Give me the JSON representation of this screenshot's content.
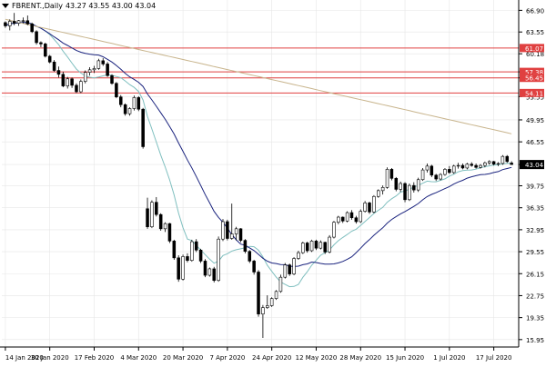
{
  "header": {
    "symbol": "FBRENT.,Daily",
    "ohlc": "43.27 43.55 43.00 43.04"
  },
  "chart_data": {
    "type": "candlestick",
    "symbol": "FBRENT.",
    "timeframe": "Daily",
    "last_price": "43.04",
    "y_ticks": [
      "66.90",
      "63.55",
      "60.18",
      "57.38",
      "56.45",
      "53.55",
      "49.95",
      "46.55",
      "43.04",
      "39.75",
      "36.35",
      "32.95",
      "29.55",
      "26.15",
      "22.75",
      "19.35",
      "15.95"
    ],
    "ylim": [
      14.8,
      68.5
    ],
    "x_ticks": [
      "14 Jan 2020",
      "30 Jan 2020",
      "17 Feb 2020",
      "4 Mar 2020",
      "20 Mar 2020",
      "7 Apr 2020",
      "24 Apr 2020",
      "12 May 2020",
      "28 May 2020",
      "15 Jun 2020",
      "1 Jul 2020",
      "17 Jul 2020"
    ],
    "levels": [
      {
        "value": 61.07,
        "label": "61.07"
      },
      {
        "value": 57.38,
        "label": "57.38"
      },
      {
        "value": 56.45,
        "label": "56.45"
      },
      {
        "value": 54.11,
        "label": "54.11"
      }
    ],
    "colors": {
      "level": "#e04040",
      "candle": "#000000",
      "ma_slow": "#c8b48c",
      "ma_mid": "#1a237e",
      "ma_fast": "#7fbfbf",
      "grid": "#e6e6e6"
    },
    "candles": [
      [
        65,
        65.2,
        64.2,
        64.5
      ],
      [
        64.5,
        65.5,
        63.8,
        65.2
      ],
      [
        65.2,
        66.5,
        64.6,
        64.9
      ],
      [
        64.9,
        65.4,
        64.5,
        65.3
      ],
      [
        65.3,
        65.8,
        64.9,
        65.3
      ],
      [
        65.3,
        66.1,
        64.6,
        64.8
      ],
      [
        64.8,
        65,
        63.4,
        63.6
      ],
      [
        63.6,
        63.8,
        61.6,
        61.9
      ],
      [
        61.9,
        62.1,
        61.2,
        61.7
      ],
      [
        61.7,
        61.9,
        59.6,
        59.8
      ],
      [
        59.8,
        60,
        58.7,
        58.9
      ],
      [
        58.9,
        59.2,
        57.4,
        57.6
      ],
      [
        57.6,
        58.2,
        56.5,
        57
      ],
      [
        57,
        57.4,
        55,
        55.2
      ],
      [
        55.2,
        56.6,
        54.8,
        56.3
      ],
      [
        56.3,
        56.5,
        54.9,
        55.3
      ],
      [
        55.3,
        55.6,
        54.1,
        54.3
      ],
      [
        54.3,
        56.2,
        54.1,
        55.9
      ],
      [
        55.9,
        57.6,
        55.6,
        57.3
      ],
      [
        57.3,
        58.1,
        56.8,
        57.7
      ],
      [
        57.7,
        58.3,
        57.2,
        57.9
      ],
      [
        57.9,
        59.4,
        57.7,
        59.1
      ],
      [
        59.1,
        59.5,
        58.3,
        58.6
      ],
      [
        58.6,
        58.9,
        56.6,
        56.8
      ],
      [
        56.8,
        57,
        55.4,
        55.6
      ],
      [
        55.6,
        55.8,
        53.3,
        53.5
      ],
      [
        53.5,
        53.8,
        51.9,
        52.3
      ],
      [
        52.3,
        52.5,
        50.6,
        50.9
      ],
      [
        50.9,
        51.9,
        50.6,
        51.7
      ],
      [
        51.7,
        53.7,
        51.4,
        53.4
      ],
      [
        53.4,
        53.6,
        51.3,
        51.6
      ],
      [
        51.6,
        51.8,
        45.5,
        45.8
      ],
      [
        36.2,
        37.9,
        33.1,
        33.4
      ],
      [
        33.4,
        37.5,
        33.2,
        37.2
      ],
      [
        37.2,
        38,
        35,
        35.3
      ],
      [
        35.3,
        35.5,
        32.8,
        33.1
      ],
      [
        33.1,
        34.1,
        32.6,
        33.9
      ],
      [
        33.9,
        34,
        30.9,
        31.2
      ],
      [
        31.2,
        31.4,
        28.3,
        28.6
      ],
      [
        28.6,
        29,
        24.9,
        25.3
      ],
      [
        25.3,
        29.1,
        25.1,
        28.8
      ],
      [
        28.8,
        29.3,
        27.9,
        28.2
      ],
      [
        28.2,
        31.4,
        28,
        31.1
      ],
      [
        31.1,
        31.5,
        29.5,
        29.8
      ],
      [
        29.8,
        30,
        27.8,
        28.1
      ],
      [
        28.1,
        28.4,
        25.6,
        25.9
      ],
      [
        25.9,
        27.1,
        25.7,
        26.9
      ],
      [
        26.9,
        27.2,
        24.8,
        25.1
      ],
      [
        25.1,
        31.9,
        24.9,
        31.5
      ],
      [
        31.5,
        34.6,
        31.2,
        34.2
      ],
      [
        34.2,
        34.5,
        31.3,
        31.6
      ],
      [
        31.6,
        37,
        31.4,
        32.3
      ],
      [
        32.3,
        33.4,
        31.3,
        33.1
      ],
      [
        33.1,
        33.2,
        31,
        31.3
      ],
      [
        31.3,
        31.5,
        29.3,
        29.6
      ],
      [
        29.6,
        29.8,
        27.8,
        28.1
      ],
      [
        28.1,
        28.3,
        26,
        26.4
      ],
      [
        26.4,
        26.7,
        19.5,
        19.9
      ],
      [
        19.9,
        21.3,
        16.2,
        20.9
      ],
      [
        20.9,
        22.8,
        20.7,
        21.2
      ],
      [
        21.2,
        22.5,
        21,
        22.3
      ],
      [
        22.3,
        23.6,
        22.1,
        23.4
      ],
      [
        23.4,
        26,
        23.2,
        25.6
      ],
      [
        25.6,
        27.8,
        25.4,
        27.5
      ],
      [
        27.5,
        27.7,
        25.8,
        26.1
      ],
      [
        26.1,
        28.7,
        25.9,
        28.5
      ],
      [
        28.5,
        29.7,
        28.3,
        29.4
      ],
      [
        29.4,
        31.1,
        29.2,
        30.9
      ],
      [
        30.9,
        31.1,
        29.4,
        29.7
      ],
      [
        29.7,
        31.4,
        29.5,
        31.2
      ],
      [
        31.2,
        31.4,
        29.8,
        30.1
      ],
      [
        30.1,
        31.3,
        29.9,
        31
      ],
      [
        31,
        31.1,
        29.2,
        29.5
      ],
      [
        29.5,
        32.1,
        29.3,
        31.8
      ],
      [
        31.8,
        34.3,
        31.6,
        34.1
      ],
      [
        34.1,
        35.1,
        33.8,
        34.9
      ],
      [
        34.9,
        35,
        34,
        34.3
      ],
      [
        34.3,
        35.8,
        34.1,
        35.6
      ],
      [
        35.6,
        36,
        34.5,
        34.8
      ],
      [
        34.8,
        35.1,
        33.9,
        34.2
      ],
      [
        34.2,
        36.1,
        34,
        35.8
      ],
      [
        35.8,
        37.4,
        35.6,
        37.1
      ],
      [
        37.1,
        37.3,
        35.4,
        35.7
      ],
      [
        35.7,
        38.3,
        35.5,
        38.1
      ],
      [
        38.1,
        39.2,
        37.9,
        39
      ],
      [
        39,
        39.8,
        38.4,
        39.5
      ],
      [
        39.5,
        42.6,
        39.3,
        42.3
      ],
      [
        42.3,
        42.5,
        40.6,
        40.9
      ],
      [
        40.9,
        41.1,
        38.9,
        39.2
      ],
      [
        39.2,
        40.4,
        38.8,
        40.1
      ],
      [
        40.1,
        40.3,
        37.2,
        37.6
      ],
      [
        37.6,
        40.1,
        37.4,
        39.8
      ],
      [
        39.8,
        40.3,
        38.7,
        39.1
      ],
      [
        39.1,
        41,
        38.8,
        40.7
      ],
      [
        40.7,
        42.5,
        40.5,
        42.2
      ],
      [
        42.2,
        43.2,
        41.8,
        42.8
      ],
      [
        42.8,
        43,
        41.1,
        41.4
      ],
      [
        41.4,
        41.6,
        40.5,
        40.8
      ],
      [
        40.8,
        41.7,
        40.6,
        41.5
      ],
      [
        41.5,
        42.5,
        41.3,
        42.3
      ],
      [
        42.3,
        42.8,
        41.6,
        41.8
      ],
      [
        41.8,
        43,
        41.6,
        42.8
      ],
      [
        42.8,
        43.3,
        42.4,
        42.9
      ],
      [
        42.9,
        43.2,
        42.3,
        42.5
      ],
      [
        42.5,
        43.3,
        42.3,
        43.1
      ],
      [
        43.1,
        43.4,
        42.7,
        42.9
      ],
      [
        42.9,
        43.2,
        42.4,
        42.6
      ],
      [
        42.6,
        43.1,
        42.4,
        42.9
      ],
      [
        42.9,
        43.5,
        42.6,
        43.3
      ],
      [
        43.3,
        43.7,
        43,
        43.5
      ],
      [
        43.5,
        43.6,
        42.9,
        43.1
      ],
      [
        43.1,
        43.4,
        42.8,
        43.2
      ],
      [
        43.2,
        44.5,
        43,
        44.3
      ],
      [
        44.3,
        44.5,
        43.3,
        43.5
      ],
      [
        43.27,
        43.55,
        43,
        43.04
      ]
    ]
  }
}
